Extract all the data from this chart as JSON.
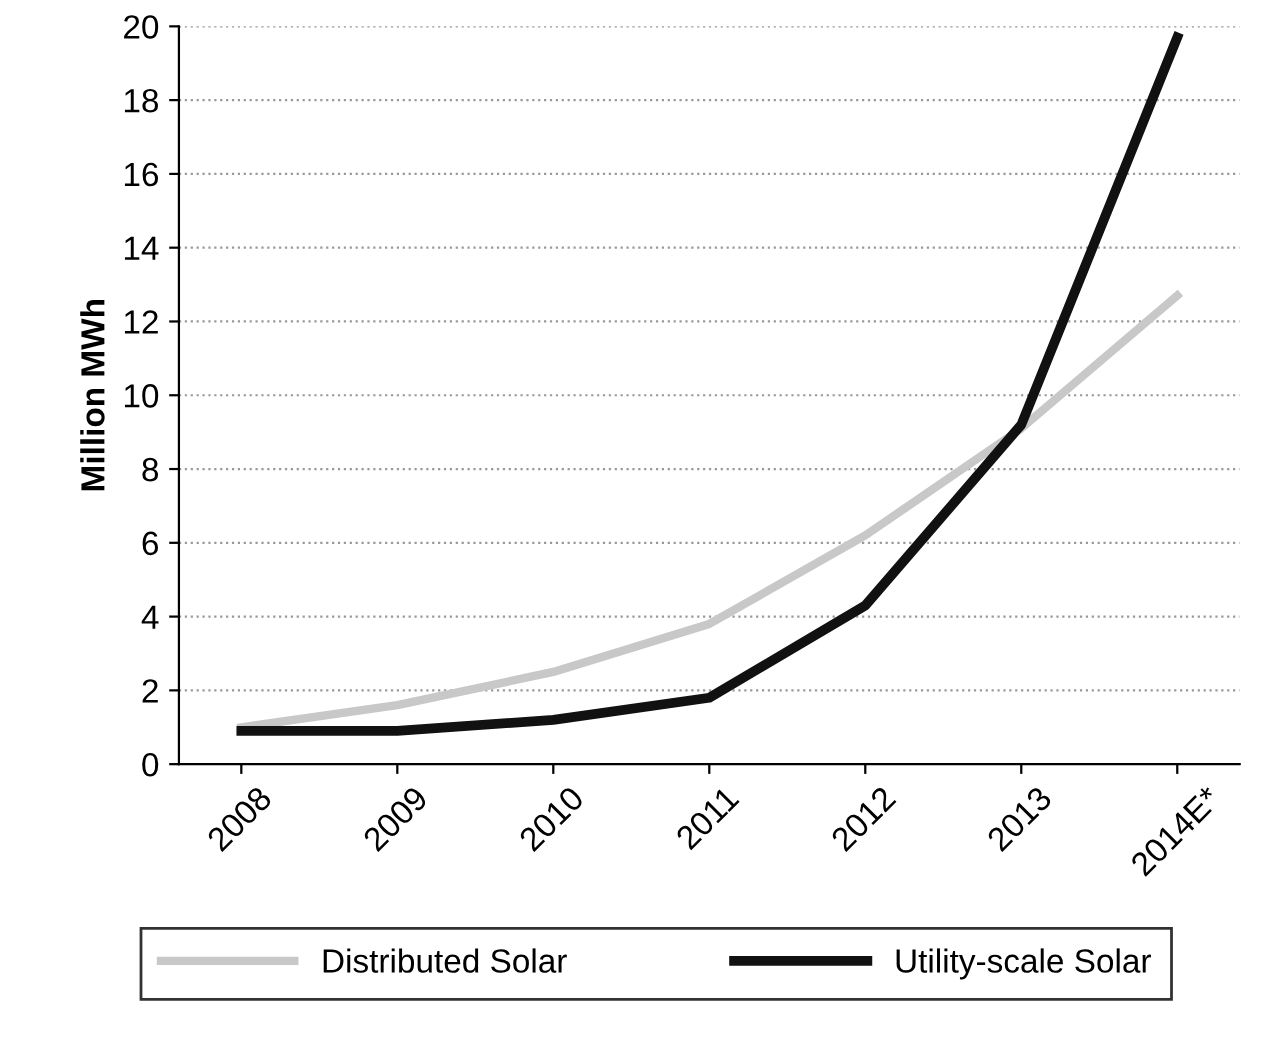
{
  "chart_data": {
    "type": "line",
    "ylabel": "Million MWh",
    "categories": [
      "2008",
      "2009",
      "2010",
      "2011",
      "2012",
      "2013",
      "2014E*"
    ],
    "series": [
      {
        "name": "Distributed Solar",
        "color": "#c8c8c8",
        "values": [
          1.0,
          1.6,
          2.5,
          3.8,
          6.2,
          9.1,
          12.7
        ]
      },
      {
        "name": "Utility-scale Solar",
        "color": "#111111",
        "values": [
          0.9,
          0.9,
          1.2,
          1.8,
          4.3,
          9.2,
          19.7
        ]
      }
    ],
    "ylim": [
      0,
      20
    ],
    "yticks": [
      0,
      2,
      4,
      6,
      8,
      10,
      12,
      14,
      16,
      18,
      20
    ],
    "grid": "y",
    "legend": "bottom",
    "marker": "none",
    "line_style": "solid"
  }
}
